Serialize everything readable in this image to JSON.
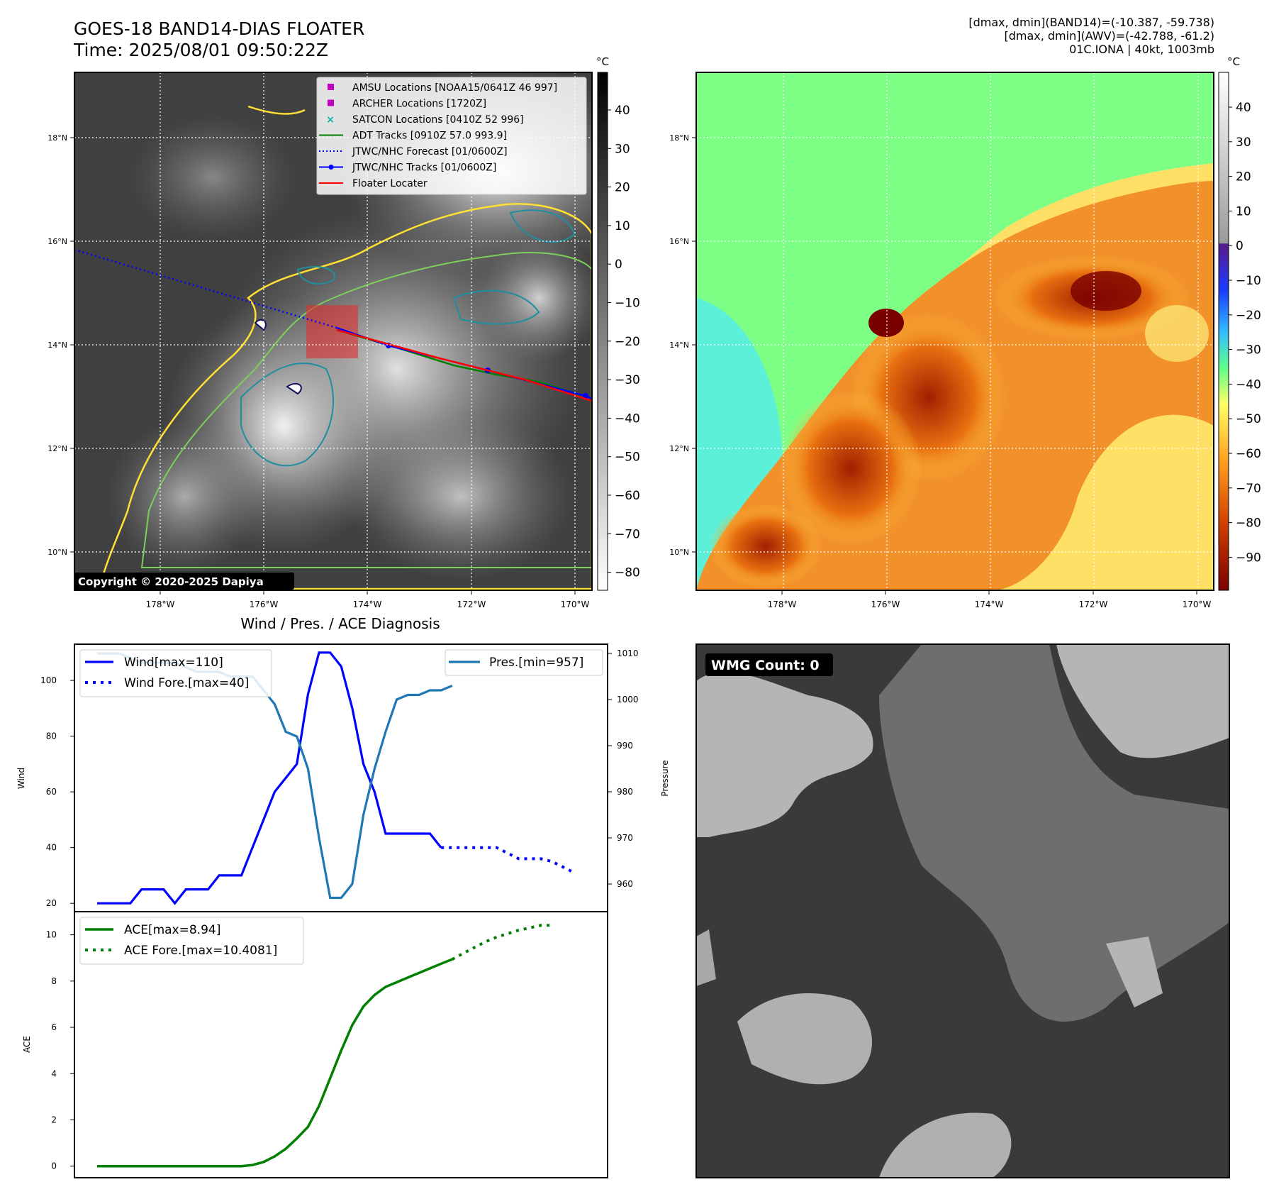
{
  "header": {
    "title": "GOES-18 BAND14-DIAS FLOATER",
    "time": "Time: 2025/08/01 09:50:22Z",
    "stats_band14": "[dmax, dmin](BAND14)=(-10.387, -59.738)",
    "stats_awv": "[dmax, dmin](AWV)=(-42.788, -61.2)",
    "storm": "01C.IONA | 40kt, 1003mb"
  },
  "map_left": {
    "unit": "°C",
    "colorbar_ticks": [
      "40",
      "30",
      "20",
      "10",
      "0",
      "−10",
      "−20",
      "−30",
      "−40",
      "−50",
      "−60",
      "−70",
      "−80"
    ],
    "lat_ticks": [
      "18°N",
      "16°N",
      "14°N",
      "12°N",
      "10°N"
    ],
    "lon_ticks": [
      "178°W",
      "176°W",
      "174°W",
      "172°W",
      "170°W"
    ],
    "copyright": "Copyright © 2020-2025 Dapiya",
    "legend": [
      {
        "label": "AMSU Locations [NOAA15/0641Z 46 997]",
        "color": "#c000c0",
        "marker": "square"
      },
      {
        "label": "ARCHER Locations [1720Z]",
        "color": "#c000c0",
        "marker": "square"
      },
      {
        "label": "SATCON Locations [0410Z 52 996]",
        "color": "#00b0b0",
        "marker": "x"
      },
      {
        "label": "ADT Tracks [0910Z 57.0 993.9]",
        "color": "#008000",
        "marker": "line"
      },
      {
        "label": "JTWC/NHC Forecast [01/0600Z]",
        "color": "#0000ff",
        "marker": "dotted"
      },
      {
        "label": "JTWC/NHC Tracks [01/0600Z]",
        "color": "#0000ff",
        "marker": "line-dot"
      },
      {
        "label": "Floater Locater",
        "color": "#ff0000",
        "marker": "line"
      }
    ]
  },
  "map_right": {
    "unit": "°C",
    "colorbar_ticks": [
      "40",
      "30",
      "20",
      "10",
      "0",
      "−10",
      "−20",
      "−30",
      "−40",
      "−50",
      "−60",
      "−70",
      "−80",
      "−90"
    ],
    "lat_ticks": [
      "18°N",
      "16°N",
      "14°N",
      "12°N",
      "10°N"
    ],
    "lon_ticks": [
      "178°W",
      "176°W",
      "174°W",
      "172°W",
      "170°W"
    ]
  },
  "wmg": {
    "label": "WMG Count: 0"
  },
  "chart_data": [
    {
      "type": "line",
      "title": "Wind / Pres. / ACE Diagnosis",
      "ylabel": "Wind",
      "y2label": "Pressure",
      "ylim": [
        17,
        113
      ],
      "y2lim": [
        954,
        1012
      ],
      "yticks": [
        20,
        40,
        60,
        80,
        100
      ],
      "y2ticks": [
        960,
        970,
        980,
        990,
        1000,
        1010
      ],
      "series": [
        {
          "name": "Wind[max=110]",
          "axis": "left",
          "style": "solid",
          "color": "#0000ff",
          "values": [
            20,
            20,
            20,
            20,
            25,
            25,
            25,
            20,
            25,
            25,
            25,
            30,
            30,
            30,
            40,
            50,
            60,
            65,
            70,
            95,
            110,
            110,
            105,
            90,
            70,
            60,
            45,
            45,
            45,
            45,
            45,
            40
          ]
        },
        {
          "name": "Wind Fore.[max=40]",
          "axis": "left",
          "style": "dotted",
          "color": "#0000ff",
          "start_index": 31,
          "values": [
            40,
            40,
            40,
            40,
            40,
            40,
            38,
            36,
            36,
            36,
            35,
            33,
            31
          ]
        },
        {
          "name": "Pres.[min=957]",
          "axis": "right",
          "style": "solid",
          "color": "#1f77b4",
          "values": [
            1010,
            1010,
            1010,
            1009,
            1008,
            1008,
            1008,
            1008,
            1007,
            1006,
            1006,
            1006,
            1005,
            1005,
            1005,
            1002,
            999,
            993,
            992,
            985,
            970,
            957,
            957,
            960,
            975,
            985,
            993,
            1000,
            1001,
            1001,
            1002,
            1002,
            1003
          ]
        }
      ]
    },
    {
      "type": "line",
      "ylabel": "ACE",
      "ylim": [
        -0.5,
        11
      ],
      "yticks": [
        0,
        2,
        4,
        6,
        8,
        10
      ],
      "series": [
        {
          "name": "ACE[max=8.94]",
          "style": "solid",
          "color": "#008000",
          "values": [
            0,
            0,
            0,
            0,
            0,
            0,
            0,
            0,
            0,
            0,
            0,
            0,
            0,
            0,
            0.05,
            0.18,
            0.42,
            0.75,
            1.2,
            1.7,
            2.6,
            3.8,
            5.0,
            6.1,
            6.9,
            7.4,
            7.75,
            7.95,
            8.15,
            8.35,
            8.55,
            8.75,
            8.94
          ]
        },
        {
          "name": "ACE Fore.[max=10.4081]",
          "style": "dotted",
          "color": "#008000",
          "start_index": 32,
          "values": [
            8.94,
            9.2,
            9.45,
            9.7,
            9.9,
            10.05,
            10.2,
            10.3,
            10.4081,
            10.4081
          ]
        }
      ]
    }
  ]
}
